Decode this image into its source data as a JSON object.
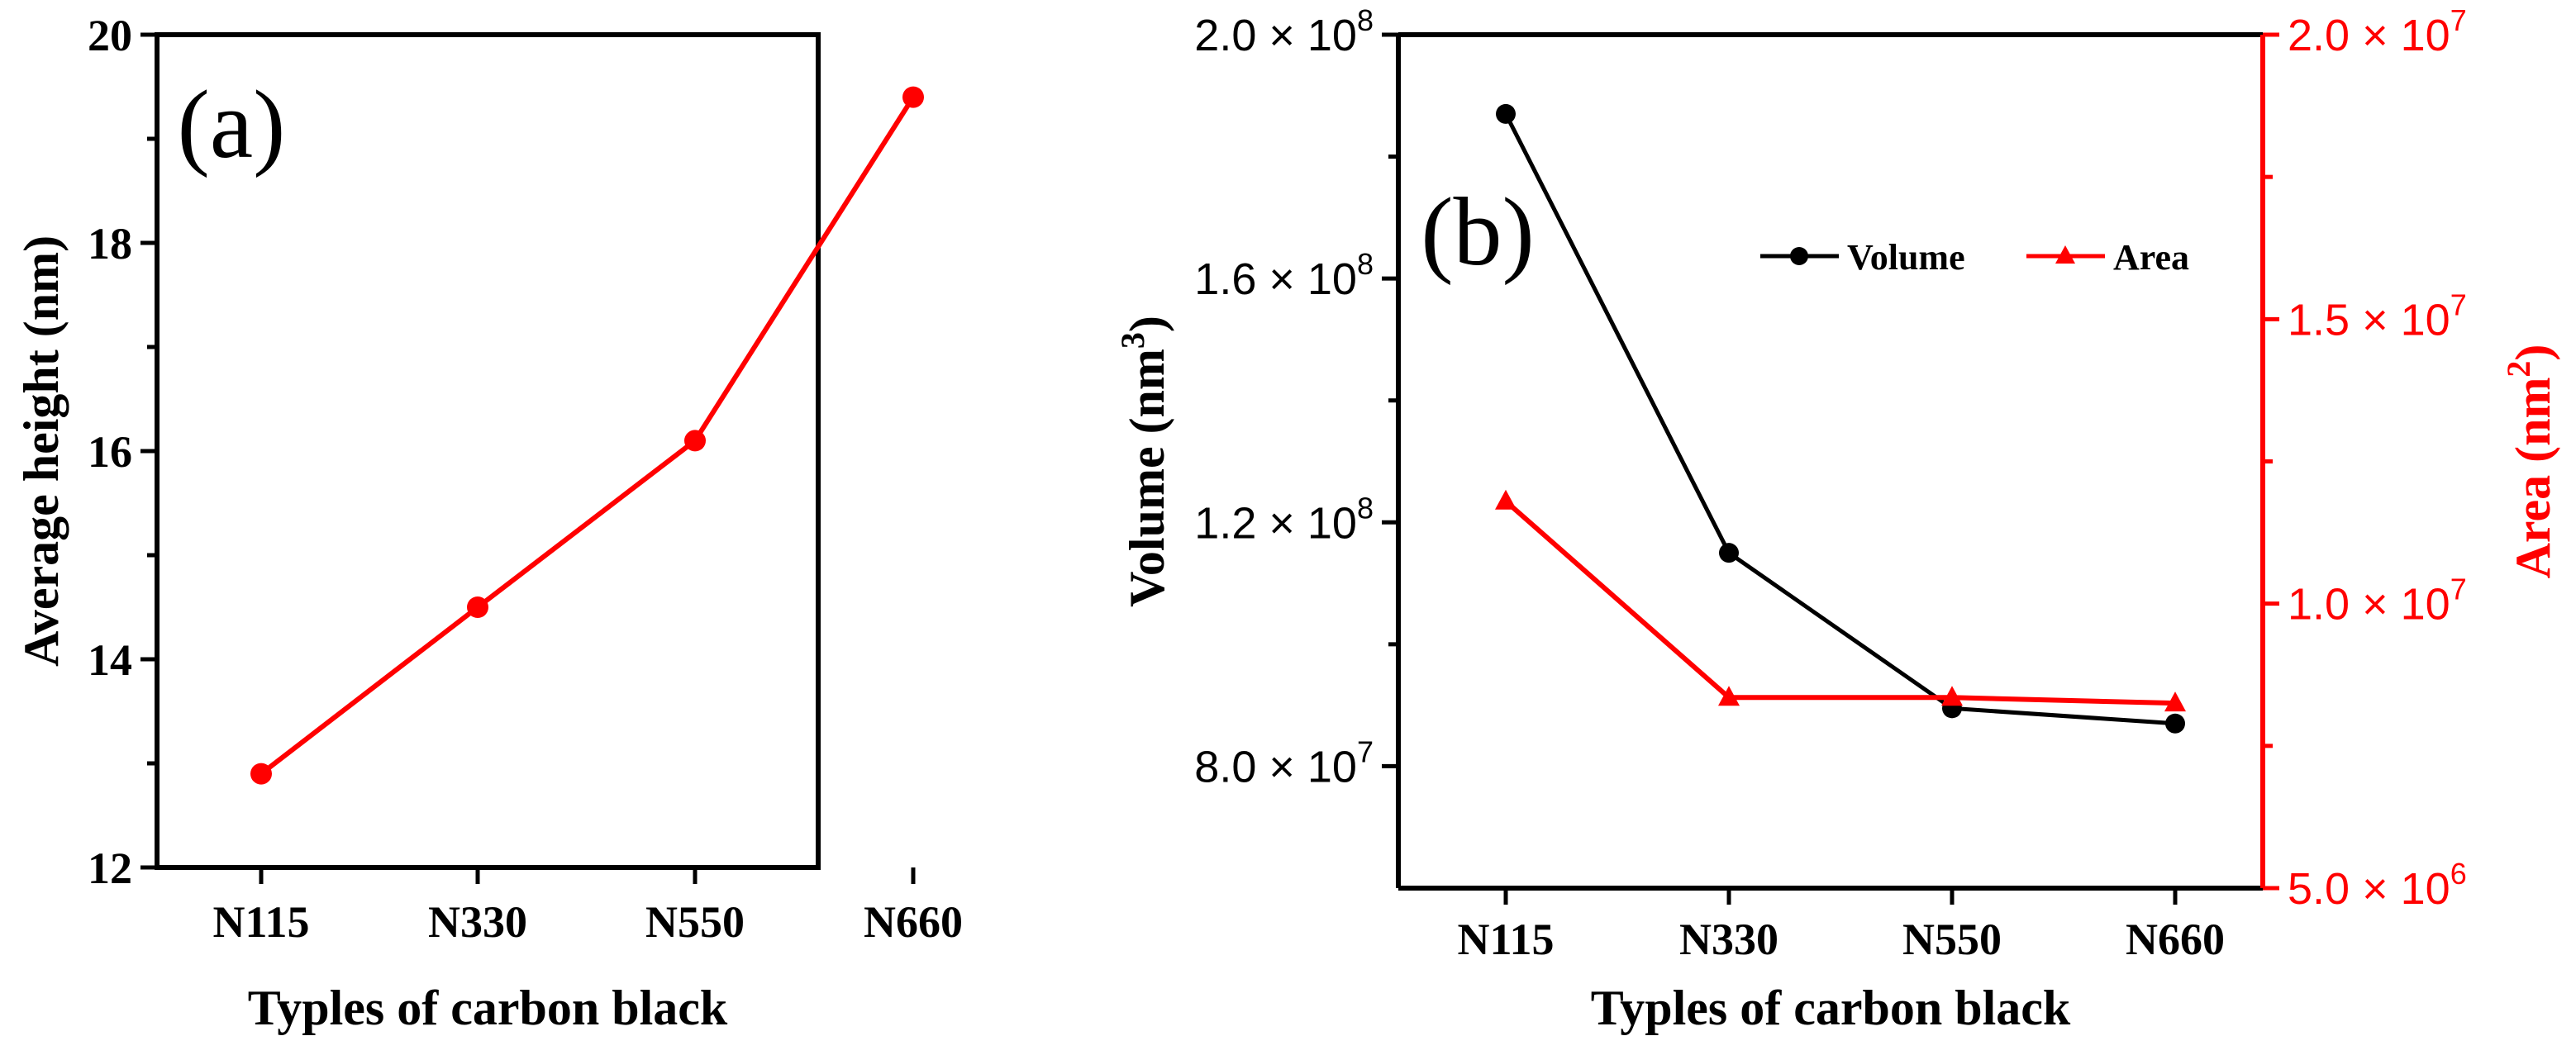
{
  "chart_data": [
    {
      "type": "line",
      "panel_label": "(a)",
      "title": "",
      "xlabel": "Typles of carbon black",
      "ylabel": "Average height (nm)",
      "categories": [
        "N115",
        "N330",
        "N550",
        "N660"
      ],
      "ylim": [
        12,
        20
      ],
      "yticks": [
        12,
        14,
        16,
        18,
        20
      ],
      "ytick_labels": [
        "12",
        "14",
        "16",
        "18",
        "20"
      ],
      "series": [
        {
          "name": "Average height",
          "values": [
            12.9,
            14.5,
            16.1,
            19.4
          ],
          "color": "#ff0000",
          "marker": "circle"
        }
      ]
    },
    {
      "type": "line",
      "panel_label": "(b)",
      "title": "",
      "xlabel": "Typles of carbon black",
      "ylabel": "Volume (nm",
      "ylabel_sup": "3",
      "ylabel_close": ")",
      "y2label": "Area (nm",
      "y2label_sup": "2",
      "y2label_close": ")",
      "categories": [
        "N115",
        "N330",
        "N550",
        "N660"
      ],
      "ylim": [
        60000000,
        200000000
      ],
      "yticks": [
        80000000,
        120000000,
        160000000,
        200000000
      ],
      "ytick_labels": [
        {
          "mant": "8.0",
          "times": "×",
          "base": "10",
          "exp": "7"
        },
        {
          "mant": "1.2",
          "times": "×",
          "base": "10",
          "exp": "8"
        },
        {
          "mant": "1.6",
          "times": "×",
          "base": "10",
          "exp": "8"
        },
        {
          "mant": "2.0",
          "times": "×",
          "base": "10",
          "exp": "8"
        }
      ],
      "y2lim": [
        5000000,
        20000000
      ],
      "y2ticks": [
        5000000,
        10000000,
        15000000,
        20000000
      ],
      "y2tick_labels": [
        {
          "mant": "5.0",
          "times": "×",
          "base": "10",
          "exp": "6"
        },
        {
          "mant": "1.0",
          "times": "×",
          "base": "10",
          "exp": "7"
        },
        {
          "mant": "1.5",
          "times": "×",
          "base": "10",
          "exp": "7"
        },
        {
          "mant": "2.0",
          "times": "×",
          "base": "10",
          "exp": "7"
        }
      ],
      "legend_position": "top-right",
      "series": [
        {
          "name": "Volume",
          "axis": "left",
          "values": [
            187000000,
            115000000,
            89500000,
            87000000
          ],
          "color": "#000000",
          "marker": "circle"
        },
        {
          "name": "Area",
          "axis": "right",
          "values": [
            11800000,
            8350000,
            8350000,
            8250000
          ],
          "color": "#ff0000",
          "marker": "triangle"
        }
      ]
    }
  ]
}
